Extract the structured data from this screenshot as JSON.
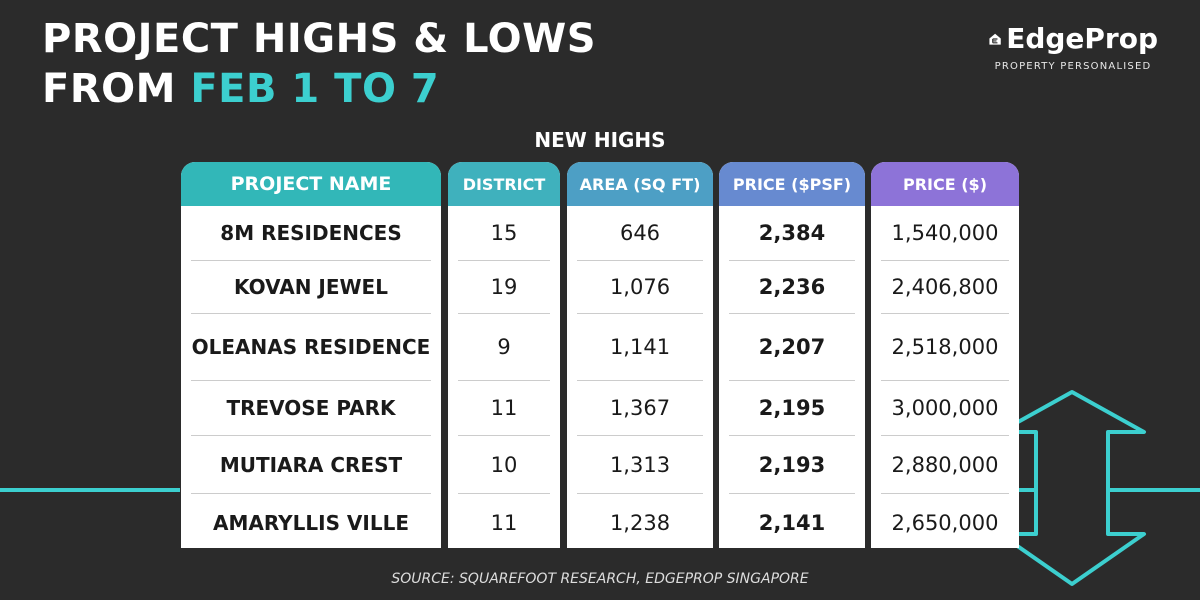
{
  "headline": {
    "line1": "PROJECT HIGHS & LOWS",
    "line2_prefix": "FROM ",
    "line2_accent": "FEB 1 TO 7"
  },
  "brand": {
    "name": "EdgeProp",
    "tagline": "PROPERTY PERSONALISED",
    "icon": "house-logo-icon"
  },
  "section_title": "NEW HIGHS",
  "colors": {
    "background": "#2b2b2b",
    "accent_teal": "#3ccfcf",
    "header_name": "#32b7b8",
    "header_district": "#3fb1bd",
    "header_area": "#4d9fc5",
    "header_psf": "#678ad0",
    "header_price": "#8d73d8"
  },
  "table": {
    "headers": [
      "PROJECT NAME",
      "DISTRICT",
      "AREA (SQ FT)",
      "PRICE ($PSF)",
      "PRICE ($)"
    ],
    "rows": [
      {
        "name": "8M RESIDENCES",
        "district": "15",
        "area": "646",
        "psf": "2,384",
        "price": "1,540,000"
      },
      {
        "name": "KOVAN JEWEL",
        "district": "19",
        "area": "1,076",
        "psf": "2,236",
        "price": "2,406,800"
      },
      {
        "name": "OLEANAS RESIDENCE",
        "district": "9",
        "area": "1,141",
        "psf": "2,207",
        "price": "2,518,000"
      },
      {
        "name": "TREVOSE PARK",
        "district": "11",
        "area": "1,367",
        "psf": "2,195",
        "price": "3,000,000"
      },
      {
        "name": "MUTIARA CREST",
        "district": "10",
        "area": "1,313",
        "psf": "2,193",
        "price": "2,880,000"
      },
      {
        "name": "AMARYLLIS VILLE",
        "district": "11",
        "area": "1,238",
        "psf": "2,141",
        "price": "2,650,000"
      }
    ]
  },
  "source": "SOURCE: SQUAREFOOT RESEARCH, EDGEPROP SINGAPORE"
}
